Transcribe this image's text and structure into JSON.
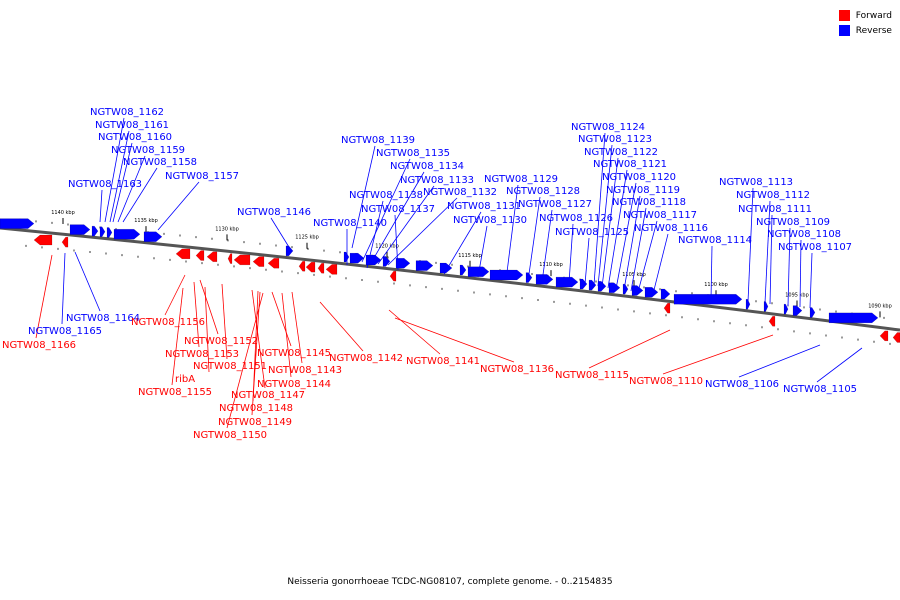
{
  "colors": {
    "forward": "#ff0000",
    "reverse": "#0000ff",
    "backbone": "#555555"
  },
  "legend": [
    {
      "label": "Forward",
      "color": "#ff0000"
    },
    {
      "label": "Reverse",
      "color": "#0000ff"
    }
  ],
  "caption": "Neisseria gonorrhoeae TCDC-NG08107, complete genome. - 0..2154835",
  "ticks": [
    "1140 kbp",
    "1135 kbp",
    "1130 kbp",
    "1125 kbp",
    "1120 kbp",
    "1115 kbp",
    "1110 kbp",
    "1105 kbp",
    "1100 kbp",
    "1095 kbp",
    "1090 kbp"
  ],
  "genes": [
    {
      "label": "NGTW08_1162",
      "strand": "reverse"
    },
    {
      "label": "NGTW08_1161",
      "strand": "reverse"
    },
    {
      "label": "NGTW08_1160",
      "strand": "reverse"
    },
    {
      "label": "NGTW08_1159",
      "strand": "reverse"
    },
    {
      "label": "NGTW08_1158",
      "strand": "reverse"
    },
    {
      "label": "NGTW08_1163",
      "strand": "reverse"
    },
    {
      "label": "NGTW08_1157",
      "strand": "reverse"
    },
    {
      "label": "NGTW08_1146",
      "strand": "reverse"
    },
    {
      "label": "NGTW08_1139",
      "strand": "reverse"
    },
    {
      "label": "NGTW08_1135",
      "strand": "reverse"
    },
    {
      "label": "NGTW08_1134",
      "strand": "reverse"
    },
    {
      "label": "NGTW08_1133",
      "strand": "reverse"
    },
    {
      "label": "NGTW08_1132",
      "strand": "reverse"
    },
    {
      "label": "NGTW08_1138",
      "strand": "reverse"
    },
    {
      "label": "NGTW08_1137",
      "strand": "reverse"
    },
    {
      "label": "NGTW08_1131",
      "strand": "reverse"
    },
    {
      "label": "NGTW08_1140",
      "strand": "reverse"
    },
    {
      "label": "NGTW08_1130",
      "strand": "reverse"
    },
    {
      "label": "NGTW08_1129",
      "strand": "reverse"
    },
    {
      "label": "NGTW08_1128",
      "strand": "reverse"
    },
    {
      "label": "NGTW08_1127",
      "strand": "reverse"
    },
    {
      "label": "NGTW08_1126",
      "strand": "reverse"
    },
    {
      "label": "NGTW08_1125",
      "strand": "reverse"
    },
    {
      "label": "NGTW08_1124",
      "strand": "reverse"
    },
    {
      "label": "NGTW08_1123",
      "strand": "reverse"
    },
    {
      "label": "NGTW08_1122",
      "strand": "reverse"
    },
    {
      "label": "NGTW08_1121",
      "strand": "reverse"
    },
    {
      "label": "NGTW08_1120",
      "strand": "reverse"
    },
    {
      "label": "NGTW08_1119",
      "strand": "reverse"
    },
    {
      "label": "NGTW08_1118",
      "strand": "reverse"
    },
    {
      "label": "NGTW08_1117",
      "strand": "reverse"
    },
    {
      "label": "NGTW08_1116",
      "strand": "reverse"
    },
    {
      "label": "NGTW08_1114",
      "strand": "reverse"
    },
    {
      "label": "NGTW08_1113",
      "strand": "reverse"
    },
    {
      "label": "NGTW08_1112",
      "strand": "reverse"
    },
    {
      "label": "NGTW08_1111",
      "strand": "reverse"
    },
    {
      "label": "NGTW08_1109",
      "strand": "reverse"
    },
    {
      "label": "NGTW08_1108",
      "strand": "reverse"
    },
    {
      "label": "NGTW08_1107",
      "strand": "reverse"
    },
    {
      "label": "NGTW08_1164",
      "strand": "reverse"
    },
    {
      "label": "NGTW08_1165",
      "strand": "reverse"
    },
    {
      "label": "NGTW08_1106",
      "strand": "reverse"
    },
    {
      "label": "NGTW08_1105",
      "strand": "reverse"
    },
    {
      "label": "NGTW08_1166",
      "strand": "forward"
    },
    {
      "label": "NGTW08_1156",
      "strand": "forward"
    },
    {
      "label": "NGTW08_1152",
      "strand": "forward"
    },
    {
      "label": "NGTW08_1153",
      "strand": "forward"
    },
    {
      "label": "NGTW08_1151",
      "strand": "forward"
    },
    {
      "label": "ribA",
      "strand": "forward"
    },
    {
      "label": "NGTW08_1155",
      "strand": "forward"
    },
    {
      "label": "NGTW08_1147",
      "strand": "forward"
    },
    {
      "label": "NGTW08_1148",
      "strand": "forward"
    },
    {
      "label": "NGTW08_1149",
      "strand": "forward"
    },
    {
      "label": "NGTW08_1150",
      "strand": "forward"
    },
    {
      "label": "NGTW08_1145",
      "strand": "forward"
    },
    {
      "label": "NGTW08_1143",
      "strand": "forward"
    },
    {
      "label": "NGTW08_1144",
      "strand": "forward"
    },
    {
      "label": "NGTW08_1142",
      "strand": "forward"
    },
    {
      "label": "NGTW08_1141",
      "strand": "forward"
    },
    {
      "label": "NGTW08_1136",
      "strand": "forward"
    },
    {
      "label": "NGTW08_1115",
      "strand": "forward"
    },
    {
      "label": "NGTW08_1110",
      "strand": "forward"
    }
  ]
}
